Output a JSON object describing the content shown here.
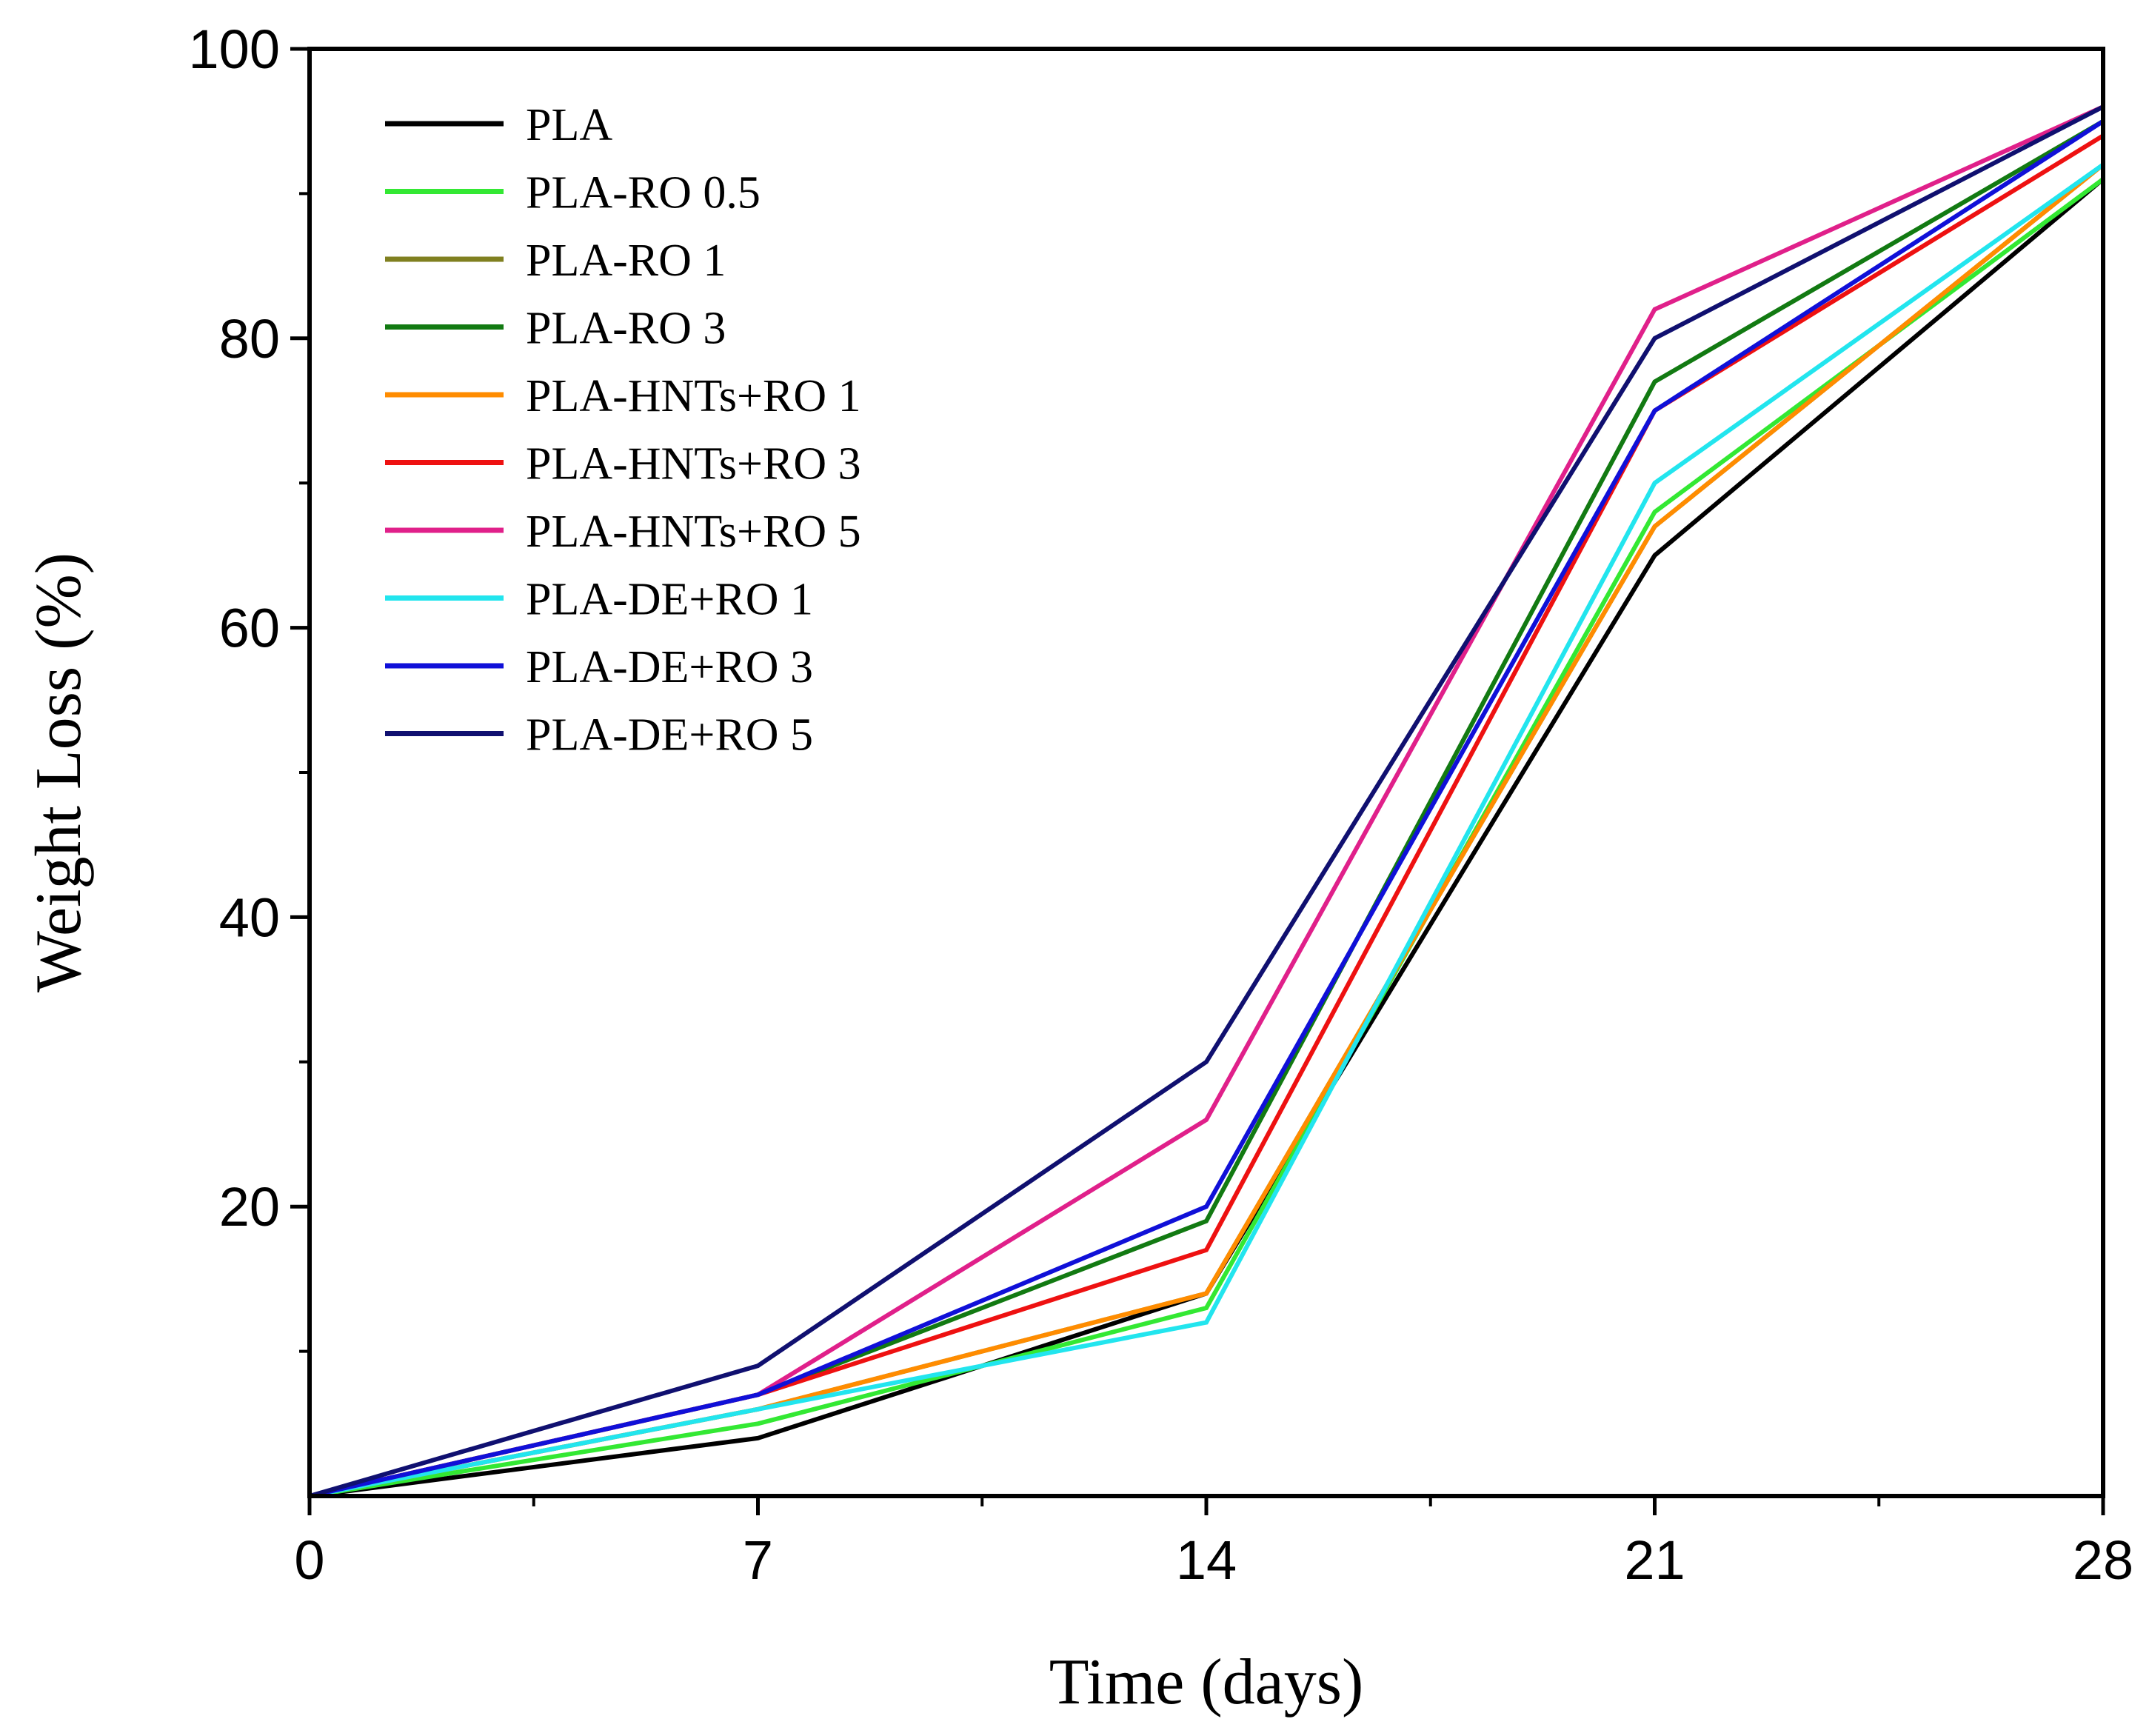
{
  "chart_data": {
    "type": "line",
    "title": "",
    "xlabel": "Time (days)",
    "ylabel": "Weight Loss (%)",
    "xlim": [
      0,
      28
    ],
    "ylim": [
      0,
      100
    ],
    "x_ticks": [
      0,
      7,
      14,
      21,
      28
    ],
    "y_ticks": [
      20,
      40,
      60,
      80,
      100
    ],
    "grid": false,
    "legend_position": "top-left",
    "x": [
      0,
      7,
      14,
      21,
      28
    ],
    "series": [
      {
        "name": "PLA",
        "color": "#000000",
        "values": [
          0,
          4,
          14,
          65,
          91
        ]
      },
      {
        "name": "PLA-RO 0.5",
        "color": "#33e833",
        "values": [
          0,
          5,
          13,
          68,
          91
        ]
      },
      {
        "name": "PLA-RO 1",
        "color": "#808020",
        "values": [
          0,
          6,
          14,
          67,
          92
        ]
      },
      {
        "name": "PLA-RO 3",
        "color": "#127a12",
        "values": [
          0,
          7,
          19,
          77,
          95
        ]
      },
      {
        "name": "PLA-HNTs+RO 1",
        "color": "#ff8c00",
        "values": [
          0,
          6,
          14,
          67,
          92
        ]
      },
      {
        "name": "PLA-HNTs+RO 3",
        "color": "#ee1111",
        "values": [
          0,
          7,
          17,
          75,
          94
        ]
      },
      {
        "name": "PLA-HNTs+RO 5",
        "color": "#e0208a",
        "values": [
          0,
          7,
          26,
          82,
          96
        ]
      },
      {
        "name": "PLA-DE+RO 1",
        "color": "#22e5ee",
        "values": [
          0,
          6,
          12,
          70,
          92
        ]
      },
      {
        "name": "PLA-DE+RO 3",
        "color": "#1010d8",
        "values": [
          0,
          7,
          20,
          75,
          95
        ]
      },
      {
        "name": "PLA-DE+RO 5",
        "color": "#101070",
        "values": [
          0,
          9,
          30,
          80,
          96
        ]
      }
    ]
  }
}
